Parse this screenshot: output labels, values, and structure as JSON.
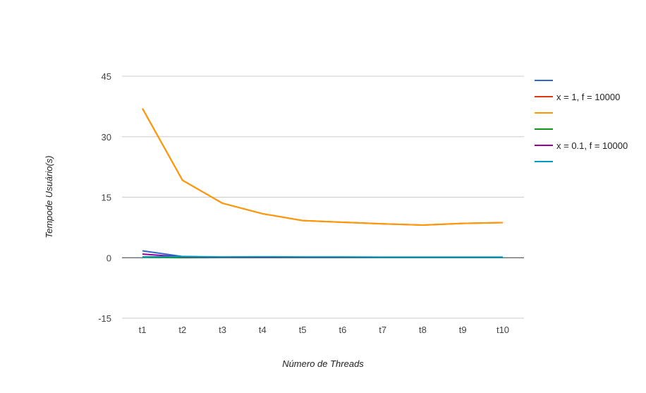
{
  "chart_data": {
    "type": "line",
    "xlabel": "Número de Threads",
    "ylabel": "Tempode Usuário(s)",
    "categories": [
      "t1",
      "t2",
      "t3",
      "t4",
      "t5",
      "t6",
      "t7",
      "t8",
      "t9",
      "t10"
    ],
    "ylim": [
      -15,
      45
    ],
    "yticks": [
      -15,
      0,
      15,
      30,
      45
    ],
    "grid": true,
    "legend_position": "right",
    "series": [
      {
        "name": "",
        "color": "#3366cc",
        "values": [
          1.7,
          0.3,
          0.1,
          0.15,
          0.1,
          0.1,
          0.1,
          0.1,
          0.1,
          0.1
        ]
      },
      {
        "name": "x = 1, f = 10000",
        "color": "#dc3912",
        "values": [
          37.0,
          19.2,
          13.5,
          10.9,
          9.2,
          8.8,
          8.4,
          8.1,
          8.5,
          8.7
        ]
      },
      {
        "name": "",
        "color": "#ff9900",
        "values": [
          37.0,
          19.2,
          13.5,
          10.9,
          9.2,
          8.8,
          8.4,
          8.1,
          8.5,
          8.7
        ]
      },
      {
        "name": "",
        "color": "#109618",
        "values": [
          0.1,
          0.0,
          0.05,
          0.05,
          0.05,
          0.05,
          0.05,
          0.05,
          0.05,
          0.05
        ]
      },
      {
        "name": "x = 0.1, f = 10000",
        "color": "#990099",
        "values": [
          0.9,
          0.2,
          0.1,
          0.1,
          0.1,
          0.1,
          0.1,
          0.1,
          0.1,
          0.1
        ]
      },
      {
        "name": "",
        "color": "#0099c6",
        "values": [
          0.2,
          0.3,
          0.2,
          0.25,
          0.2,
          0.2,
          0.15,
          0.15,
          0.15,
          0.15
        ]
      }
    ]
  }
}
